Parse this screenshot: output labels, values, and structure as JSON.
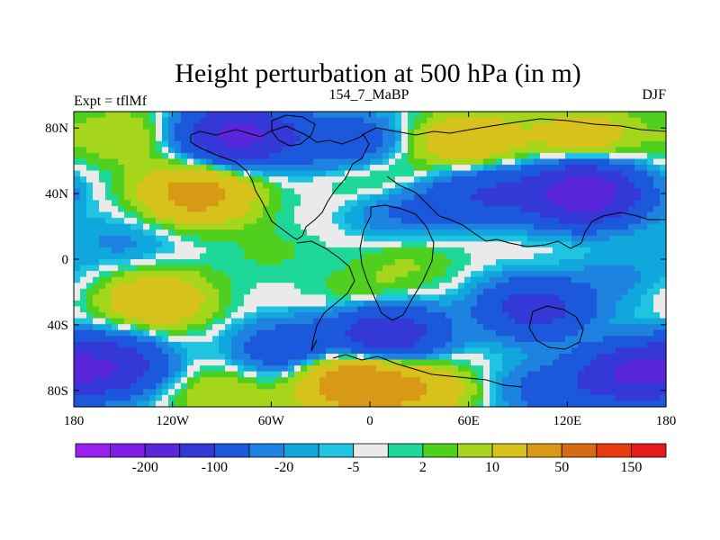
{
  "chart_data": {
    "type": "heatmap",
    "title": "Height perturbation at 500 hPa (in m)",
    "left_string": "Expt = tflMf",
    "center_string": "154_7_MaBP",
    "right_string": "DJF",
    "x_range": [
      -180,
      180
    ],
    "y_range": [
      -90,
      90
    ],
    "x_ticks": [
      {
        "value": -180,
        "label": "180"
      },
      {
        "value": -120,
        "label": "120W"
      },
      {
        "value": -60,
        "label": "60W"
      },
      {
        "value": 0,
        "label": "0"
      },
      {
        "value": 60,
        "label": "60E"
      },
      {
        "value": 120,
        "label": "120E"
      },
      {
        "value": 180,
        "label": "180"
      }
    ],
    "y_ticks": [
      {
        "value": 80,
        "label": "80N"
      },
      {
        "value": 40,
        "label": "40N"
      },
      {
        "value": 0,
        "label": "0"
      },
      {
        "value": -40,
        "label": "40S"
      },
      {
        "value": -80,
        "label": "80S"
      }
    ],
    "colorbar": {
      "colors": [
        "#9a22f0",
        "#7d1ee6",
        "#5a26dc",
        "#3438d6",
        "#1c58dc",
        "#1d82e0",
        "#10a8dc",
        "#1ec4e0",
        "#eaeaea",
        "#1ed89a",
        "#50d01e",
        "#a6d61c",
        "#d6c21a",
        "#d89a16",
        "#d86a12",
        "#e83c0e",
        "#e41c1c"
      ],
      "labels": [
        {
          "after_index": 1,
          "label": "-200"
        },
        {
          "after_index": 3,
          "label": "-100"
        },
        {
          "after_index": 5,
          "label": "-20"
        },
        {
          "after_index": 7,
          "label": "-5"
        },
        {
          "after_index": 9,
          "label": "2"
        },
        {
          "after_index": 11,
          "label": "10"
        },
        {
          "after_index": 13,
          "label": "50"
        },
        {
          "after_index": 15,
          "label": "150"
        }
      ]
    },
    "anomalies": [
      {
        "lon": -80,
        "lat": 76,
        "value": -120
      },
      {
        "lon": -150,
        "lat": 75,
        "value": 20
      },
      {
        "lon": -15,
        "lat": 72,
        "value": -40
      },
      {
        "lon": 60,
        "lat": 72,
        "value": 45
      },
      {
        "lon": 130,
        "lat": 75,
        "value": 35
      },
      {
        "lon": -105,
        "lat": 40,
        "value": 70
      },
      {
        "lon": 5,
        "lat": 48,
        "value": 15
      },
      {
        "lon": 130,
        "lat": 40,
        "value": -150
      },
      {
        "lon": 70,
        "lat": 40,
        "value": -50
      },
      {
        "lon": 20,
        "lat": 30,
        "value": -25
      },
      {
        "lon": -150,
        "lat": 10,
        "value": -12
      },
      {
        "lon": -60,
        "lat": 5,
        "value": 6
      },
      {
        "lon": 25,
        "lat": 0,
        "value": 10
      },
      {
        "lon": 120,
        "lat": 5,
        "value": 2
      },
      {
        "lon": -130,
        "lat": -25,
        "value": 45
      },
      {
        "lon": 0,
        "lat": -25,
        "value": 15
      },
      {
        "lon": 100,
        "lat": -30,
        "value": -70
      },
      {
        "lon": 150,
        "lat": -10,
        "value": -12
      },
      {
        "lon": -50,
        "lat": -55,
        "value": -40
      },
      {
        "lon": 10,
        "lat": -45,
        "value": -90
      },
      {
        "lon": -160,
        "lat": -65,
        "value": -90
      },
      {
        "lon": -10,
        "lat": -75,
        "value": 90
      },
      {
        "lon": 160,
        "lat": -70,
        "value": -100
      },
      {
        "lon": 110,
        "lat": -80,
        "value": -30
      },
      {
        "lon": -90,
        "lat": -82,
        "value": 20
      },
      {
        "lon": 30,
        "lat": -80,
        "value": 40
      }
    ]
  }
}
